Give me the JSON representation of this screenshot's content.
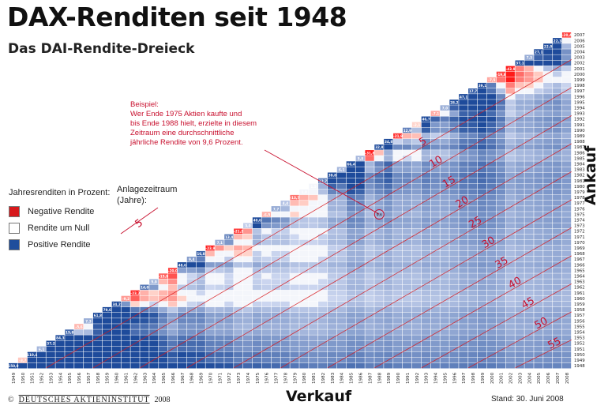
{
  "title": "DAX-Renditen seit 1948",
  "subtitle": "Das DAI-Rendite-Dreieck",
  "legend": {
    "title": "Jahresrenditen in Prozent:",
    "items": [
      {
        "label": "Negative Rendite",
        "color": "#d7191c"
      },
      {
        "label": "Rendite um Null",
        "color": "#ffffff"
      },
      {
        "label": "Positive Rendite",
        "color": "#1f4e9c"
      }
    ],
    "period_label": "Anlagezeitraum (Jahre):",
    "period_sample": "5"
  },
  "annotation": {
    "lines": [
      "Beispiel:",
      "Wer Ende 1975 Aktien kaufte und",
      "bis Ende 1988 hielt, erzielte in diesem",
      "Zeitraum eine durchschnittliche",
      "jährliche Rendite von 9,6 Prozent."
    ],
    "buy_year": 1975,
    "sell_year": 1988,
    "value": "9,6"
  },
  "footer": {
    "copyright": "©",
    "org": "DEUTSCHES AKTIENINSTITUT",
    "year": "2008",
    "stand": "Stand: 30. Juni 2008"
  },
  "chart_data": {
    "type": "heatmap",
    "xlabel": "Verkauf",
    "ylabel": "Ankauf",
    "x_start": 1949,
    "x_end": 2008,
    "y_start": 1948,
    "y_end": 2007,
    "duration_lines": [
      5,
      10,
      15,
      20,
      25,
      30,
      35,
      40,
      45,
      50,
      55
    ],
    "diagonal_values": [
      {
        "sell": 1949,
        "value": "150,9"
      },
      {
        "sell": 1950,
        "value": "-3,7"
      },
      {
        "sell": 1951,
        "value": "110,4"
      },
      {
        "sell": 1952,
        "value": "6,1"
      },
      {
        "sell": 1953,
        "value": "37,2"
      },
      {
        "sell": 1954,
        "value": "84,3"
      },
      {
        "sell": 1955,
        "value": "15,8"
      },
      {
        "sell": 1956,
        "value": "-5,6"
      },
      {
        "sell": 1957,
        "value": "7,3"
      },
      {
        "sell": 1958,
        "value": "61,8"
      },
      {
        "sell": 1959,
        "value": "79,6"
      },
      {
        "sell": 1960,
        "value": "34,2"
      },
      {
        "sell": 1961,
        "value": "-9,2"
      },
      {
        "sell": 1962,
        "value": "-23,2"
      },
      {
        "sell": 1963,
        "value": "14,0"
      },
      {
        "sell": 1964,
        "value": "5,9"
      },
      {
        "sell": 1965,
        "value": "-15,9"
      },
      {
        "sell": 1966,
        "value": "-20,0"
      },
      {
        "sell": 1967,
        "value": "48,6"
      },
      {
        "sell": 1968,
        "value": "9,4"
      },
      {
        "sell": 1969,
        "value": "16,8"
      },
      {
        "sell": 1970,
        "value": "-23,9"
      },
      {
        "sell": 1971,
        "value": "7,1"
      },
      {
        "sell": 1972,
        "value": "13,4"
      },
      {
        "sell": 1973,
        "value": "-21,2"
      },
      {
        "sell": 1974,
        "value": "3,0"
      },
      {
        "sell": 1975,
        "value": "40,6"
      },
      {
        "sell": 1976,
        "value": "-6,5"
      },
      {
        "sell": 1977,
        "value": "7,7"
      },
      {
        "sell": 1978,
        "value": "4,4"
      },
      {
        "sell": 1979,
        "value": "-13,7"
      },
      {
        "sell": 1980,
        "value": "1,0"
      },
      {
        "sell": 1981,
        "value": "1,5"
      },
      {
        "sell": 1982,
        "value": "12,7"
      },
      {
        "sell": 1983,
        "value": "39,8"
      },
      {
        "sell": 1984,
        "value": "6,1"
      },
      {
        "sell": 1985,
        "value": "66,4"
      },
      {
        "sell": 1986,
        "value": "5,8"
      },
      {
        "sell": 1987,
        "value": "-31,8"
      },
      {
        "sell": 1988,
        "value": "32,8"
      },
      {
        "sell": 1989,
        "value": "34,8"
      },
      {
        "sell": 1990,
        "value": "-21,9"
      },
      {
        "sell": 1991,
        "value": "12,9"
      },
      {
        "sell": 1992,
        "value": "-2,1"
      },
      {
        "sell": 1993,
        "value": "46,7"
      },
      {
        "sell": 1994,
        "value": "-7,1"
      },
      {
        "sell": 1995,
        "value": "7,0"
      },
      {
        "sell": 1996,
        "value": "28,2"
      },
      {
        "sell": 1997,
        "value": "47,1"
      },
      {
        "sell": 1998,
        "value": "17,7"
      },
      {
        "sell": 1999,
        "value": "39,1"
      },
      {
        "sell": 2000,
        "value": "-7,5"
      },
      {
        "sell": 2001,
        "value": "-19,8"
      },
      {
        "sell": 2002,
        "value": "-43,9"
      },
      {
        "sell": 2003,
        "value": "37,1"
      },
      {
        "sell": 2004,
        "value": "7,3"
      },
      {
        "sell": 2005,
        "value": "27,1"
      },
      {
        "sell": 2006,
        "value": "22,0"
      },
      {
        "sell": 2007,
        "value": "22,3"
      },
      {
        "sell": 2008,
        "value": "-20,4"
      }
    ]
  }
}
